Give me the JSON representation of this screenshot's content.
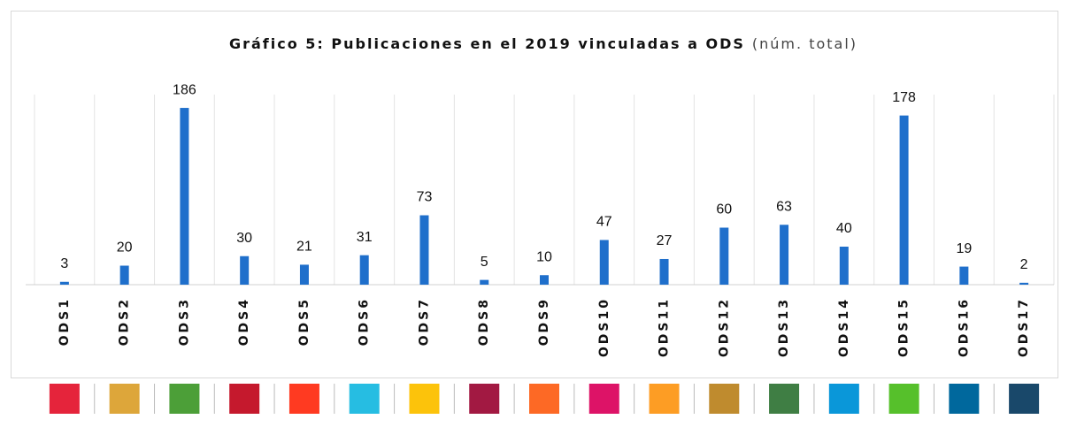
{
  "chart_data": {
    "type": "bar",
    "title": "Gráfico 5: Publicaciones en el 2019 vinculadas a ODS",
    "subtitle": "(núm. total)",
    "categories": [
      "ODS1",
      "ODS2",
      "ODS3",
      "ODS4",
      "ODS5",
      "ODS6",
      "ODS7",
      "ODS8",
      "ODS9",
      "ODS10",
      "ODS11",
      "ODS12",
      "ODS13",
      "ODS14",
      "ODS15",
      "ODS16",
      "ODS17"
    ],
    "values": [
      3,
      20,
      186,
      30,
      21,
      31,
      73,
      5,
      10,
      47,
      27,
      60,
      63,
      40,
      178,
      19,
      2
    ],
    "color": "#1f6fcb",
    "ylim": [
      0,
      200
    ]
  }
}
